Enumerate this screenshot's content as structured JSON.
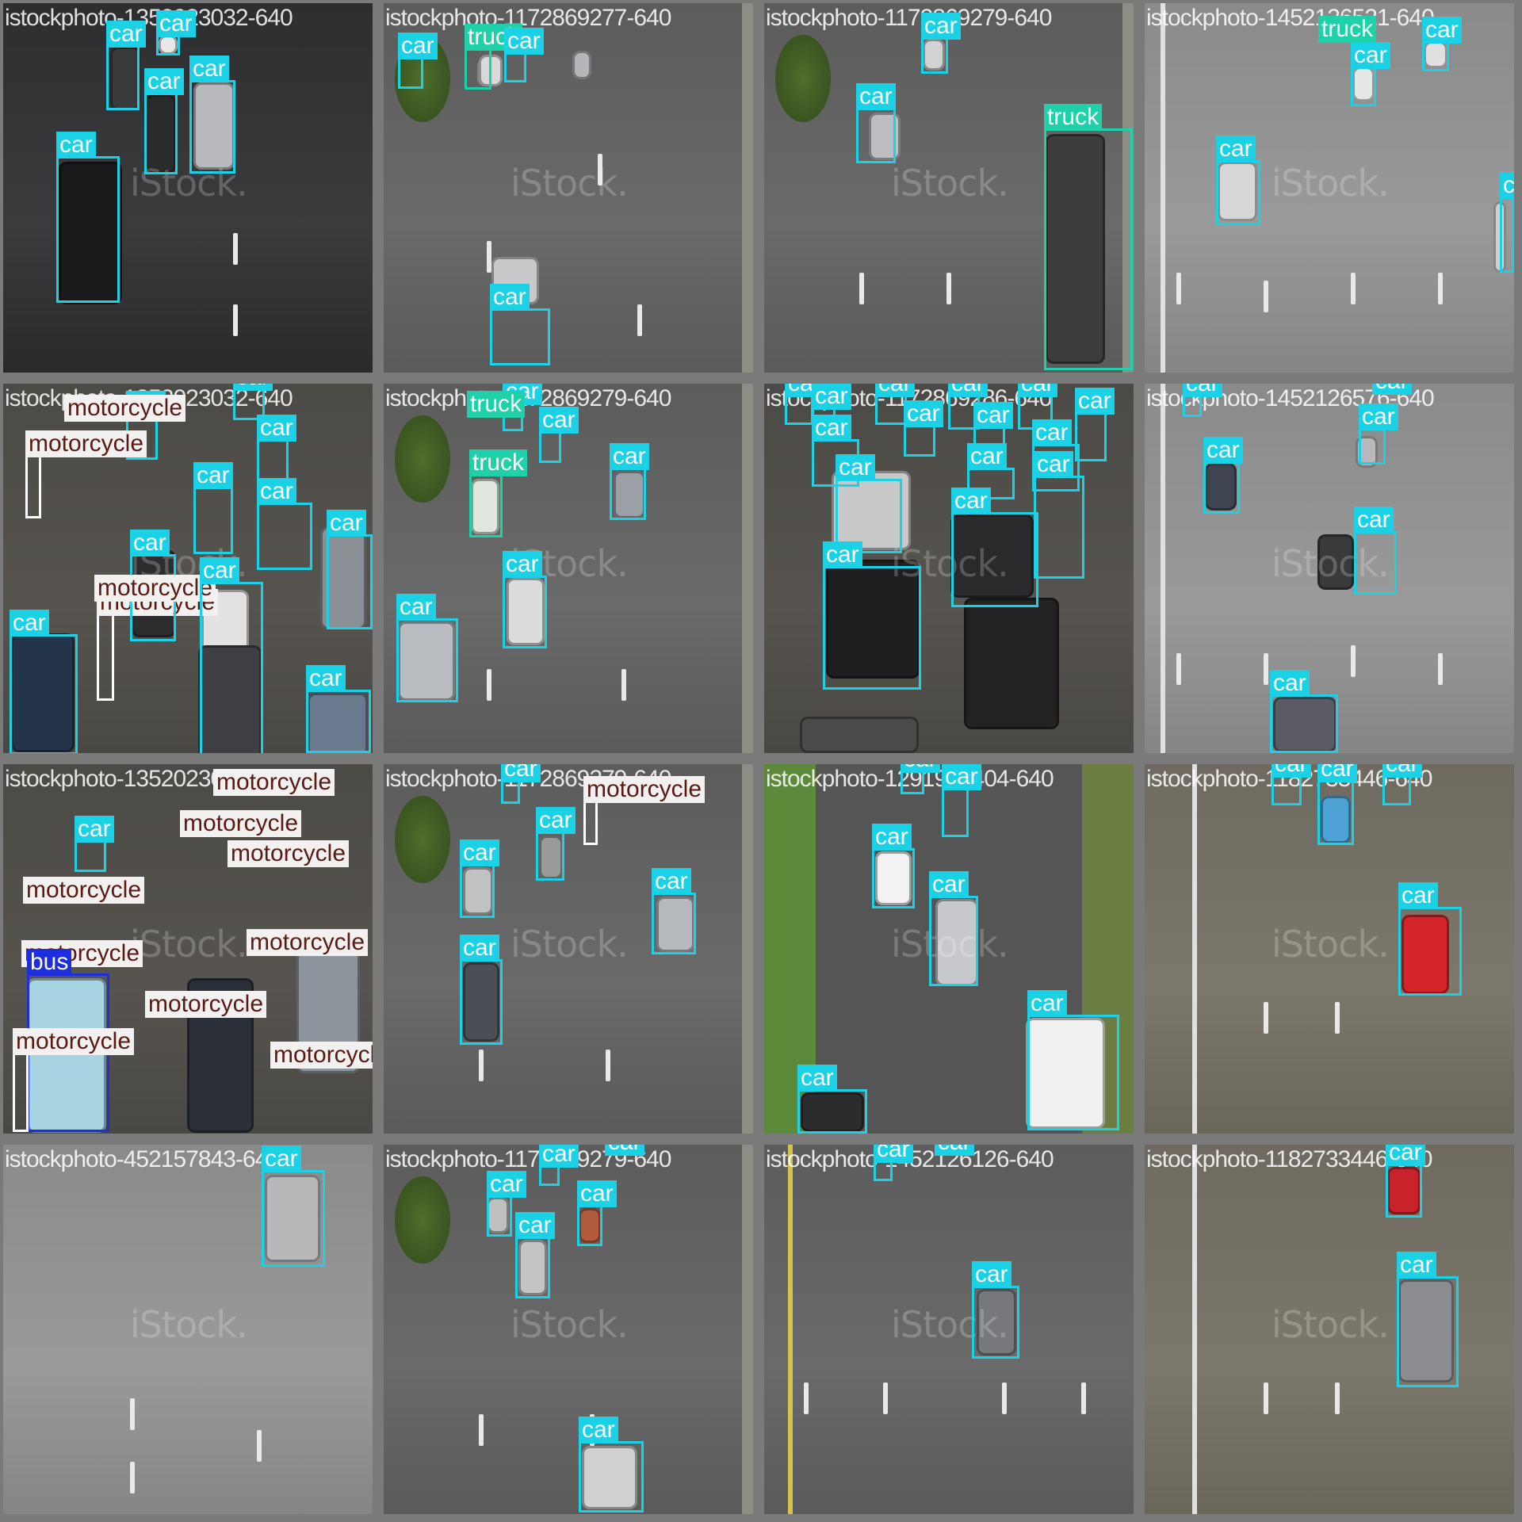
{
  "mosaic": {
    "watermark": "iStock.",
    "tiles": [
      {
        "filename": "istockphoto-1352023032-640",
        "labels": [
          "car",
          "car",
          "car",
          "car",
          "car"
        ]
      },
      {
        "filename": "istockphoto-1172869277-640",
        "labels": [
          "car",
          "truck",
          "car",
          "car"
        ]
      },
      {
        "filename": "istockphoto-1172869279-640",
        "labels": [
          "car",
          "car",
          "truck"
        ]
      },
      {
        "filename": "istockphoto-1452126521-640",
        "labels": [
          "truck",
          "car",
          "car",
          "car",
          "car"
        ]
      },
      {
        "filename": "istockphoto-1352023032-640",
        "labels": [
          "motorcycle",
          "car",
          "car",
          "motorcycle",
          "car",
          "motorcycle",
          "car",
          "car",
          "motorcycle",
          "car",
          "car",
          "car",
          "motorcycle",
          "car",
          "car"
        ]
      },
      {
        "filename": "istockphoto-1172869279-640",
        "labels": [
          "car",
          "truck",
          "car",
          "truck",
          "car",
          "car",
          "car"
        ]
      },
      {
        "filename": "istockphoto-1172869286-640",
        "labels": [
          "car",
          "car",
          "car",
          "car",
          "car",
          "car",
          "car",
          "car",
          "car",
          "car",
          "car",
          "car",
          "car",
          "car",
          "car"
        ]
      },
      {
        "filename": "istockphoto-1452126576-640",
        "labels": [
          "car",
          "car",
          "car",
          "car",
          "car",
          "car"
        ]
      },
      {
        "filename": "istockphoto-1352023032-640",
        "labels": [
          "motorcycle",
          "motorcycle",
          "motorcycle",
          "car",
          "motorcycle",
          "motorcycle",
          "motorcycle",
          "bus",
          "motorcycle",
          "motorcycle",
          "motorcycle",
          "motorcycle"
        ]
      },
      {
        "filename": "istockphoto-1172869279-640",
        "labels": [
          "car",
          "motorcycle",
          "car",
          "car",
          "car",
          "car"
        ]
      },
      {
        "filename": "istockphoto-1291922404-640",
        "labels": [
          "car",
          "car",
          "car",
          "car",
          "car",
          "car"
        ]
      },
      {
        "filename": "istockphoto-1182733446-640",
        "labels": [
          "car",
          "car",
          "car",
          "car"
        ]
      },
      {
        "filename": "istockphoto-452157843-640",
        "labels": [
          "car"
        ]
      },
      {
        "filename": "istockphoto-1172869279-640",
        "labels": [
          "car",
          "car",
          "car",
          "car",
          "car",
          "car"
        ]
      },
      {
        "filename": "istockphoto-1452126126-640",
        "labels": [
          "car",
          "car",
          "car"
        ]
      },
      {
        "filename": "istockphoto-1182733446-640",
        "labels": [
          "car",
          "car"
        ]
      }
    ]
  },
  "colors": {
    "car": "#1ad1e5",
    "truck": "#1fd1a8",
    "motorcycle": "#ffffff",
    "bus": "#1c2ee0"
  }
}
